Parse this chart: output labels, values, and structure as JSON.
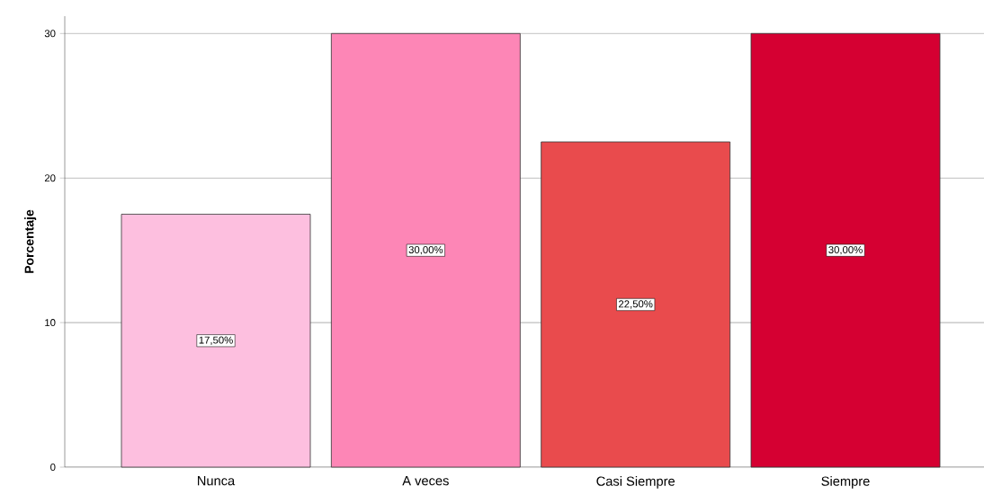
{
  "chart_data": {
    "type": "bar",
    "ylabel": "Porcentaje",
    "categories": [
      "Nunca",
      "A veces",
      "Casi Siempre",
      "Siempre"
    ],
    "values": [
      17.5,
      30,
      22.5,
      30
    ],
    "colors": [
      "#fdbfdf",
      "#fd86b6",
      "#e94b4d",
      "#d50032"
    ],
    "value_labels": [
      "17,50%",
      "30,00%",
      "22,50%",
      "30,00%"
    ],
    "ylim": [
      0,
      31.2
    ],
    "yticks": [
      0,
      10,
      20,
      30
    ],
    "grid": "y"
  }
}
